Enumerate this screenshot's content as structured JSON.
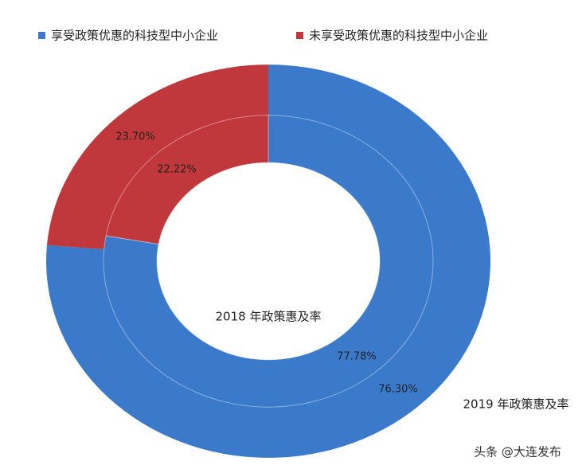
{
  "chart_data": {
    "type": "nested-donut",
    "categories": [
      "享受政策优惠的科技型中小企业",
      "未享受政策优惠的科技型中小企业"
    ],
    "colors": [
      "#3b7acb",
      "#c0383b"
    ],
    "rings": [
      {
        "name": "2018 年政策惠及率",
        "values": [
          77.78,
          22.22
        ],
        "value_labels": [
          "77.78%",
          "22.22%"
        ]
      },
      {
        "name": "2019 年政策惠及率",
        "values": [
          76.3,
          23.7
        ],
        "value_labels": [
          "76.30%",
          "23.70%"
        ]
      }
    ]
  },
  "watermark": "头条 @大连发布"
}
